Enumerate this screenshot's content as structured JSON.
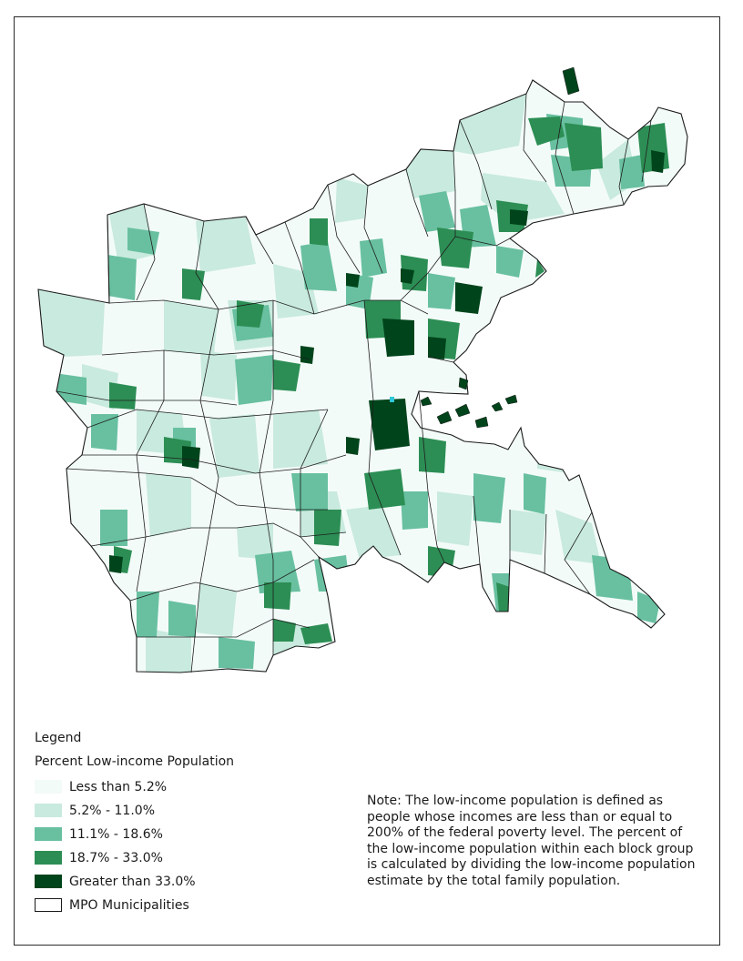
{
  "legend": {
    "title": "Legend",
    "subtitle": "Percent Low-income Population",
    "items": [
      {
        "label": "Less than 5.2%",
        "color": "#f3fbf9"
      },
      {
        "label": "5.2% - 11.0%",
        "color": "#c9eade"
      },
      {
        "label": "11.1% - 18.6%",
        "color": "#68c0a0"
      },
      {
        "label": "18.7% - 33.0%",
        "color": "#2c8e54"
      },
      {
        "label": "Greater than 33.0%",
        "color": "#00441b"
      },
      {
        "label": "MPO Municipalities",
        "color": "#ffffff"
      }
    ]
  },
  "note": "Note: The low-income population is defined as people whose incomes are less than or equal to 200% of the federal poverty level. The percent of the low-income population within each block group is calculated by dividing the low-income population estimate by the total family population.",
  "colors": {
    "background": "#ffffff",
    "border": "#2a2a2a",
    "water_accent": "#2ec8d8"
  }
}
